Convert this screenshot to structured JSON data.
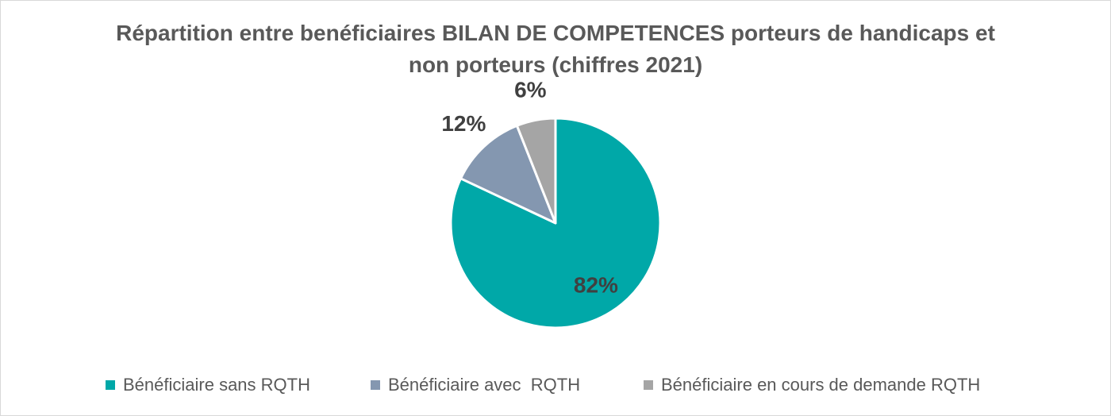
{
  "chart_data": {
    "type": "pie",
    "title_lines": [
      "Répartition entre benéficiaires BILAN DE COMPETENCES porteurs de handicaps et",
      "non porteurs (chiffres 2021)"
    ],
    "slices": [
      {
        "label": "Bénéficiaire sans RQTH",
        "value": 82,
        "display": "82%",
        "color": "#00a8a8"
      },
      {
        "label": "Bénéficiaire avec  RQTH",
        "value": 12,
        "display": "12%",
        "color": "#8497b0"
      },
      {
        "label": "Bénéficiaire en cours de demande RQTH",
        "value": 6,
        "display": "6%",
        "color": "#a5a5a5"
      }
    ],
    "legend_position": "bottom",
    "start_angle": "12 o'clock, clockwise"
  }
}
